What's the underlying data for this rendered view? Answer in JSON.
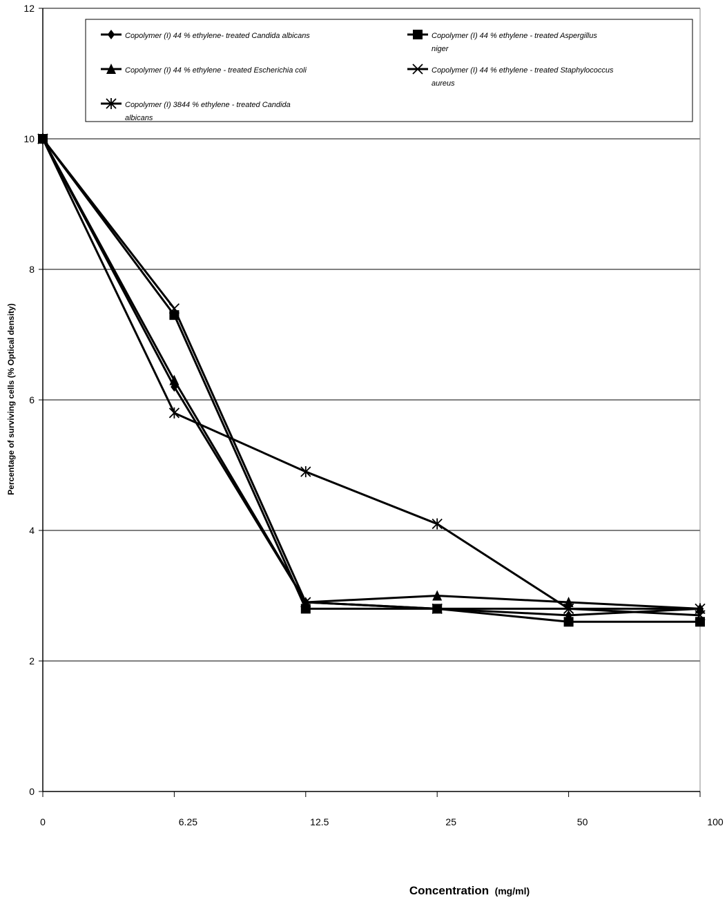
{
  "chart_data": {
    "type": "line",
    "categories": [
      "0",
      "6.25",
      "12.5",
      "25",
      "50",
      "100"
    ],
    "ylabel": "Percentage of surviving cells (% Optical density)",
    "xlabel": "Concentration",
    "xlabel_unit": "(mg/ml)",
    "ylim": [
      0,
      12
    ],
    "yticks": [
      "0",
      "2",
      "4",
      "6",
      "8",
      "10",
      "12"
    ],
    "grid": true,
    "legend_position": "top",
    "series": [
      {
        "name_lines": [
          "Copolymer (I) 44 % ethylene- treated Candida albicans"
        ],
        "marker": "diamond",
        "values": [
          10,
          6.2,
          2.9,
          2.8,
          2.7,
          2.8
        ]
      },
      {
        "name_lines": [
          "Copolymer (I) 44 % ethylene - treated Aspergillus",
          "niger"
        ],
        "marker": "square",
        "values": [
          10,
          7.3,
          2.8,
          2.8,
          2.6,
          2.6
        ]
      },
      {
        "name_lines": [
          "Copolymer (I) 44 % ethylene - treated Escherichia coli"
        ],
        "marker": "triangle",
        "values": [
          10,
          6.3,
          2.9,
          3.0,
          2.9,
          2.8
        ]
      },
      {
        "name_lines": [
          "Copolymer (I) 44 % ethylene - treated Staphylococcus",
          "aureus"
        ],
        "marker": "x",
        "values": [
          10,
          7.4,
          2.9,
          2.8,
          2.8,
          2.7
        ]
      },
      {
        "name_lines": [
          "Copolymer (I) 3844 % ethylene - treated Candida",
          "albicans"
        ],
        "marker": "asterisk",
        "values": [
          10,
          5.8,
          4.9,
          4.1,
          2.8,
          2.8
        ]
      }
    ]
  }
}
